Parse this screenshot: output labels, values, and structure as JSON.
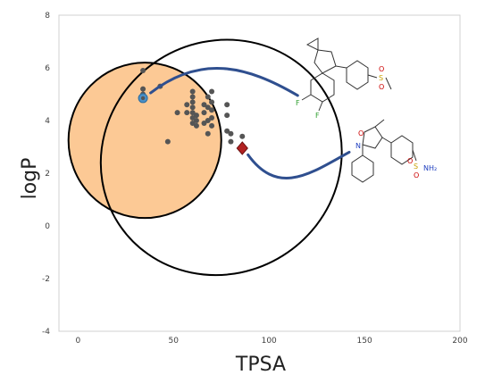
{
  "chart_data": {
    "type": "scatter",
    "xlabel": "TPSA",
    "ylabel": "logP",
    "xlim": [
      -10,
      200
    ],
    "ylim": [
      -4,
      8
    ],
    "xticks": [
      0,
      50,
      100,
      150,
      200
    ],
    "yticks": [
      -4,
      -2,
      0,
      2,
      4,
      6,
      8
    ],
    "grid": false,
    "series": [
      {
        "marker": "circle",
        "color": "#555555",
        "points": [
          [
            34,
            5.9
          ],
          [
            34,
            5.2
          ],
          [
            34,
            5.0
          ],
          [
            43,
            5.3
          ],
          [
            47,
            3.2
          ],
          [
            52,
            4.3
          ],
          [
            57,
            4.6
          ],
          [
            57,
            4.3
          ],
          [
            60,
            5.1
          ],
          [
            60,
            4.9
          ],
          [
            60,
            4.7
          ],
          [
            60,
            4.5
          ],
          [
            60,
            4.3
          ],
          [
            60,
            4.1
          ],
          [
            60,
            3.9
          ],
          [
            62,
            4.2
          ],
          [
            62,
            4.0
          ],
          [
            62,
            3.8
          ],
          [
            66,
            4.6
          ],
          [
            66,
            4.3
          ],
          [
            66,
            3.9
          ],
          [
            68,
            4.9
          ],
          [
            68,
            4.5
          ],
          [
            68,
            4.0
          ],
          [
            68,
            3.5
          ],
          [
            70,
            5.1
          ],
          [
            70,
            4.7
          ],
          [
            70,
            4.4
          ],
          [
            70,
            4.1
          ],
          [
            70,
            3.8
          ],
          [
            78,
            4.6
          ],
          [
            78,
            4.2
          ],
          [
            78,
            3.6
          ],
          [
            80,
            3.5
          ],
          [
            80,
            3.2
          ],
          [
            86,
            3.4
          ]
        ]
      },
      {
        "marker": "circle-highlight",
        "color": "#4a90c8",
        "points": [
          [
            34,
            4.85
          ]
        ]
      },
      {
        "marker": "diamond",
        "color": "#b22222",
        "points": [
          [
            86,
            2.95
          ]
        ]
      }
    ],
    "regions": [
      {
        "shape": "filled-circle",
        "fill": "#fcc995",
        "stroke": "#000000",
        "center": [
          35,
          3.25
        ],
        "radius_x": 40,
        "radius_y": 2.95
      },
      {
        "shape": "ellipse",
        "fill": "none",
        "stroke": "#000000",
        "center": [
          75,
          2.6
        ],
        "radius_x": 64,
        "radius_y": 4.4,
        "tilt": "counter-clockwise"
      }
    ],
    "connectors": [
      {
        "color": "#2f4f8f",
        "from": [
          38,
          5.05
        ],
        "to": [
          115,
          4.95
        ],
        "via": [
          [
            64,
            6.5
          ],
          [
            88,
            6.1
          ]
        ]
      },
      {
        "color": "#2f4f8f",
        "from": [
          89,
          2.7
        ],
        "to": [
          142,
          2.8
        ],
        "via": [
          [
            105,
            1.1
          ],
          [
            122,
            2.0
          ]
        ]
      }
    ],
    "structures": [
      {
        "name": "upper-structure",
        "labels": {
          "fluoro_1": "F",
          "fluoro_2": "F",
          "sulfonyl": "S",
          "oxygen_1": "O",
          "oxygen_2": "O"
        },
        "colors": {
          "fluorine": "#2e9e2e",
          "sulfur": "#c8a000",
          "oxygen": "#cc0000"
        }
      },
      {
        "name": "lower-structure",
        "labels": {
          "ring_oxygen": "O",
          "ring_nitrogen": "N",
          "sulfonyl": "S",
          "oxygen_1": "O",
          "oxygen_2": "O",
          "amine": "NH₂"
        },
        "colors": {
          "nitrogen": "#1f3fbf",
          "sulfur": "#c8a000",
          "oxygen": "#cc0000"
        }
      }
    ]
  }
}
